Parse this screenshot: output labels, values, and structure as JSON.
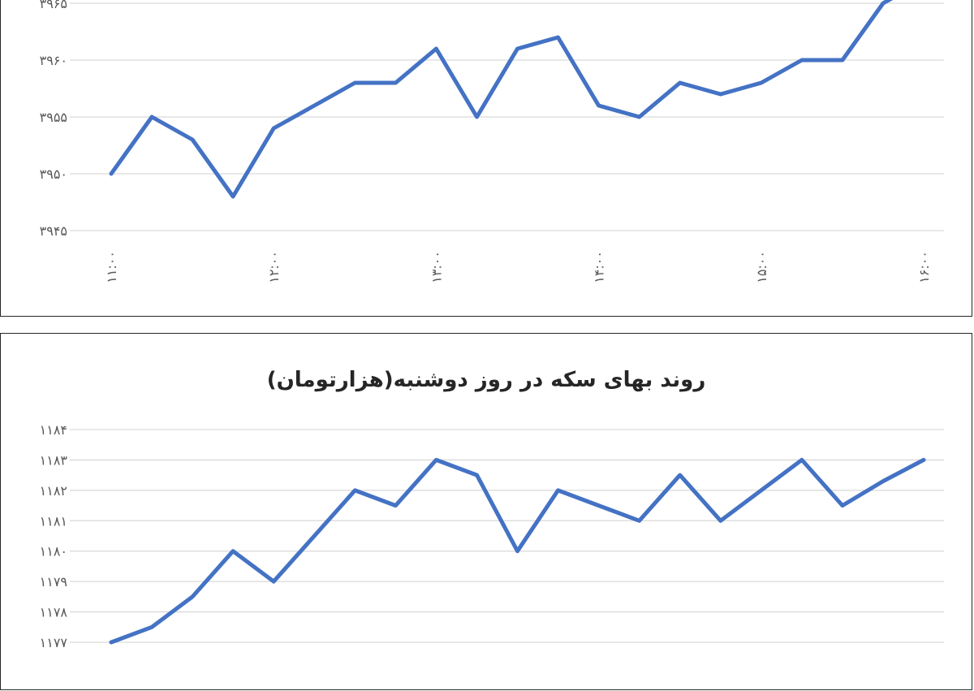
{
  "chart_data": [
    {
      "type": "line",
      "title": "",
      "xlabel": "",
      "ylabel": "",
      "x_tick_labels": [
        "۱۱:۰۰",
        "۱۲:۰۰",
        "۱۳:۰۰",
        "۱۴:۰۰",
        "۱۵:۰۰",
        "۱۶:۰۰"
      ],
      "y_ticks": [
        3945,
        3950,
        3955,
        3960,
        3965
      ],
      "y_tick_labels": [
        "۳۹۴۵",
        "۳۹۵۰",
        "۳۹۵۵",
        "۳۹۶۰",
        "۳۹۶۵"
      ],
      "ylim": [
        3945,
        3965
      ],
      "grid": true,
      "line_color": "#4472c4",
      "series": [
        {
          "values": [
            3950,
            3955,
            3953,
            3948,
            3954,
            3956,
            3958,
            3958,
            3961,
            3955,
            3961,
            3962,
            3956,
            3955,
            3958,
            3957,
            3958,
            3960,
            3960,
            3965,
            3967
          ]
        }
      ]
    },
    {
      "type": "line",
      "title": "روند بهای سکه در روز دوشنبه(هزارتومان)",
      "xlabel": "",
      "ylabel": "",
      "y_ticks": [
        1177,
        1178,
        1179,
        1180,
        1181,
        1182,
        1183,
        1184
      ],
      "y_tick_labels": [
        "۱۱۷۷",
        "۱۱۷۸",
        "۱۱۷۹",
        "۱۱۸۰",
        "۱۱۸۱",
        "۱۱۸۲",
        "۱۱۸۳",
        "۱۱۸۴"
      ],
      "ylim": [
        1177,
        1184
      ],
      "grid": true,
      "line_color": "#4472c4",
      "series": [
        {
          "values": [
            1177,
            1177.5,
            1178.5,
            1180,
            1179,
            1180.5,
            1182,
            1181.5,
            1183,
            1182.5,
            1180,
            1182,
            1181.5,
            1181,
            1182.5,
            1181,
            1182,
            1183,
            1181.5,
            1182.3,
            1183
          ]
        }
      ]
    }
  ]
}
